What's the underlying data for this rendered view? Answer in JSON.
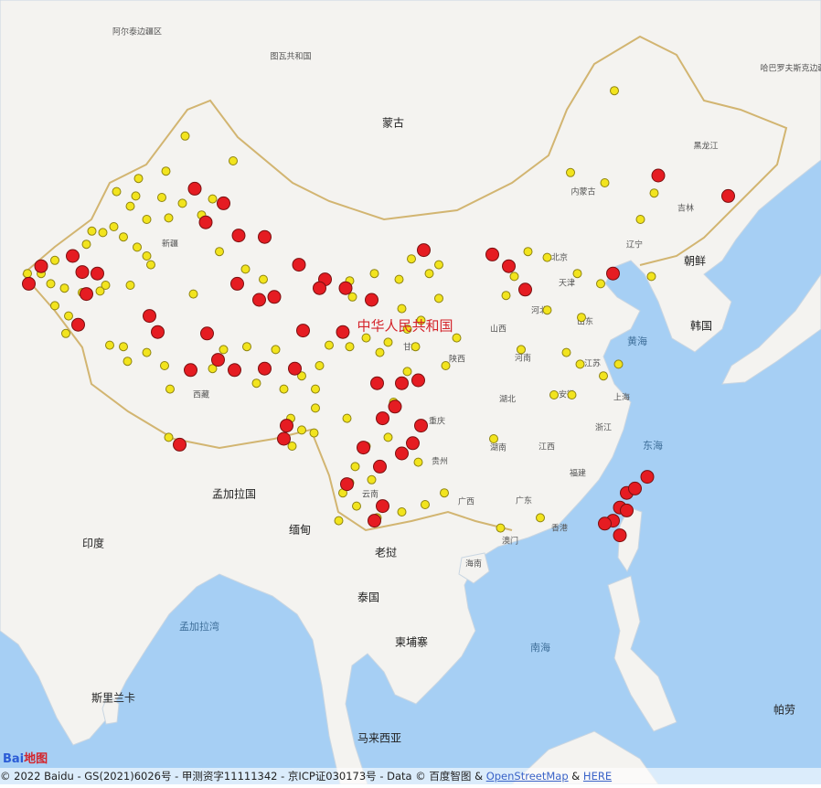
{
  "map": {
    "labels": [
      "阿尔泰边疆区",
      "图瓦共和国",
      "蒙古",
      "哈巴罗夫斯克边疆区",
      "黑龙江",
      "吉林",
      "内蒙古",
      "辽宁",
      "北京",
      "天津",
      "河北",
      "新疆",
      "甘肃",
      "山西",
      "山东",
      "河南",
      "江苏",
      "陕西",
      "西藏",
      "安徽",
      "上海",
      "湖北",
      "重庆",
      "浙江",
      "朝鲜",
      "韩国",
      "黄海",
      "东海",
      "湖南",
      "江西",
      "贵州",
      "福建",
      "云南",
      "广西",
      "广东",
      "香港",
      "澳门",
      "孟加拉国",
      "缅甸",
      "印度",
      "老挝",
      "海南",
      "泰国",
      "孟加拉湾",
      "柬埔寨",
      "南海",
      "斯里兰卡",
      "帕劳",
      "马来西亚",
      "中华人民共和国"
    ],
    "yellow_color": "#f2e41e",
    "red_color": "#e51c22",
    "yellow_points": [
      [
        88.5,
        48.7
      ],
      [
        92.0,
        47.0
      ],
      [
        87.1,
        46.3
      ],
      [
        85.1,
        45.8
      ],
      [
        83.5,
        44.9
      ],
      [
        84.9,
        44.6
      ],
      [
        86.8,
        44.5
      ],
      [
        88.3,
        44.1
      ],
      [
        84.5,
        43.9
      ],
      [
        90.5,
        44.4
      ],
      [
        89.7,
        43.3
      ],
      [
        87.3,
        43.1
      ],
      [
        85.7,
        43.0
      ],
      [
        83.3,
        42.5
      ],
      [
        82.5,
        42.1
      ],
      [
        84.0,
        41.8
      ],
      [
        85.0,
        41.1
      ],
      [
        85.7,
        40.5
      ],
      [
        86.0,
        39.9
      ],
      [
        81.7,
        42.2
      ],
      [
        81.3,
        41.3
      ],
      [
        80.3,
        40.4
      ],
      [
        79.0,
        40.2
      ],
      [
        78.0,
        39.3
      ],
      [
        77.0,
        39.3
      ],
      [
        78.7,
        38.6
      ],
      [
        79.7,
        38.3
      ],
      [
        81.0,
        38.0
      ],
      [
        82.3,
        38.1
      ],
      [
        79.0,
        37.1
      ],
      [
        80.0,
        36.4
      ],
      [
        79.8,
        35.2
      ],
      [
        82.7,
        38.5
      ],
      [
        84.5,
        38.5
      ],
      [
        89.1,
        37.9
      ],
      [
        92.9,
        39.6
      ],
      [
        94.2,
        38.9
      ],
      [
        91.0,
        40.8
      ],
      [
        93.0,
        34.3
      ],
      [
        91.3,
        34.1
      ],
      [
        90.5,
        32.8
      ],
      [
        87.0,
        33.0
      ],
      [
        85.7,
        33.9
      ],
      [
        84.0,
        34.3
      ],
      [
        83.0,
        34.4
      ],
      [
        84.3,
        33.3
      ],
      [
        87.4,
        31.4
      ],
      [
        93.7,
        31.8
      ],
      [
        95.7,
        31.4
      ],
      [
        97.0,
        32.3
      ],
      [
        98.0,
        31.4
      ],
      [
        99.0,
        34.4
      ],
      [
        100.5,
        34.3
      ],
      [
        101.7,
        34.9
      ],
      [
        103.3,
        34.6
      ],
      [
        104.7,
        35.5
      ],
      [
        105.7,
        36.1
      ],
      [
        104.1,
        38.9
      ],
      [
        105.0,
        40.3
      ],
      [
        106.3,
        39.3
      ],
      [
        107.0,
        39.9
      ],
      [
        102.3,
        39.3
      ],
      [
        100.5,
        38.8
      ],
      [
        100.7,
        37.7
      ],
      [
        104.3,
        36.9
      ],
      [
        107.0,
        37.6
      ],
      [
        102.7,
        33.9
      ],
      [
        105.3,
        34.3
      ],
      [
        108.3,
        34.9
      ],
      [
        104.7,
        32.6
      ],
      [
        103.7,
        30.5
      ],
      [
        103.3,
        28.1
      ],
      [
        100.3,
        29.4
      ],
      [
        98.0,
        30.1
      ],
      [
        96.2,
        29.4
      ],
      [
        97.0,
        28.6
      ],
      [
        97.9,
        28.4
      ],
      [
        96.3,
        27.5
      ],
      [
        101.7,
        27.5
      ],
      [
        100.9,
        26.1
      ],
      [
        102.1,
        25.2
      ],
      [
        100.5,
        25.0
      ],
      [
        100.0,
        24.3
      ],
      [
        101.0,
        23.4
      ],
      [
        99.7,
        22.4
      ],
      [
        102.5,
        22.6
      ],
      [
        104.3,
        23.0
      ],
      [
        106.0,
        23.5
      ],
      [
        107.4,
        24.3
      ],
      [
        105.5,
        26.4
      ],
      [
        111.0,
        28.0
      ],
      [
        111.5,
        21.9
      ],
      [
        114.4,
        22.6
      ],
      [
        112.5,
        39.1
      ],
      [
        113.5,
        40.8
      ],
      [
        114.9,
        40.4
      ],
      [
        117.1,
        39.3
      ],
      [
        117.4,
        36.3
      ],
      [
        116.3,
        33.9
      ],
      [
        114.9,
        36.8
      ],
      [
        113.0,
        34.1
      ],
      [
        115.4,
        31.0
      ],
      [
        116.7,
        31.0
      ],
      [
        117.3,
        33.1
      ],
      [
        119.0,
        32.3
      ],
      [
        120.1,
        33.1
      ],
      [
        118.8,
        38.6
      ],
      [
        122.5,
        39.1
      ],
      [
        121.7,
        43.0
      ],
      [
        122.7,
        44.8
      ],
      [
        116.6,
        46.2
      ],
      [
        119.1,
        45.5
      ],
      [
        119.8,
        51.8
      ],
      [
        87.3,
        28.1
      ],
      [
        111.9,
        37.8
      ],
      [
        110.9,
        40.6
      ],
      [
        107.5,
        33.0
      ],
      [
        98.3,
        33.0
      ],
      [
        95.1,
        34.1
      ]
    ],
    "red_points": [
      [
        89.2,
        45.1
      ],
      [
        91.3,
        44.1
      ],
      [
        90.0,
        42.8
      ],
      [
        92.4,
        41.9
      ],
      [
        94.3,
        41.8
      ],
      [
        82.1,
        39.3
      ],
      [
        81.0,
        39.4
      ],
      [
        80.3,
        40.5
      ],
      [
        77.1,
        38.6
      ],
      [
        78.0,
        39.8
      ],
      [
        81.3,
        37.9
      ],
      [
        80.7,
        35.8
      ],
      [
        85.9,
        36.4
      ],
      [
        86.5,
        35.3
      ],
      [
        90.1,
        35.2
      ],
      [
        88.9,
        32.7
      ],
      [
        90.9,
        33.4
      ],
      [
        92.1,
        32.7
      ],
      [
        94.3,
        32.8
      ],
      [
        96.5,
        32.8
      ],
      [
        95.0,
        37.7
      ],
      [
        93.9,
        37.5
      ],
      [
        92.3,
        38.6
      ],
      [
        96.8,
        39.9
      ],
      [
        98.7,
        38.9
      ],
      [
        98.3,
        38.3
      ],
      [
        100.2,
        38.3
      ],
      [
        102.1,
        37.5
      ],
      [
        97.1,
        35.4
      ],
      [
        100.0,
        35.3
      ],
      [
        105.9,
        40.9
      ],
      [
        110.9,
        40.6
      ],
      [
        112.1,
        39.8
      ],
      [
        113.3,
        38.2
      ],
      [
        119.7,
        39.3
      ],
      [
        123.0,
        46.0
      ],
      [
        128.1,
        44.6
      ],
      [
        102.5,
        31.8
      ],
      [
        104.3,
        31.8
      ],
      [
        105.5,
        32.0
      ],
      [
        103.8,
        30.2
      ],
      [
        102.9,
        29.4
      ],
      [
        105.7,
        28.9
      ],
      [
        105.1,
        27.7
      ],
      [
        104.3,
        27.0
      ],
      [
        102.7,
        26.1
      ],
      [
        101.5,
        27.4
      ],
      [
        100.3,
        24.9
      ],
      [
        102.9,
        23.4
      ],
      [
        102.3,
        22.4
      ],
      [
        95.9,
        28.9
      ],
      [
        95.7,
        28.0
      ],
      [
        88.1,
        27.6
      ],
      [
        122.2,
        25.4
      ],
      [
        120.7,
        24.3
      ],
      [
        120.2,
        23.3
      ],
      [
        119.7,
        22.4
      ],
      [
        119.1,
        22.2
      ],
      [
        120.2,
        21.4
      ],
      [
        120.7,
        23.1
      ],
      [
        121.3,
        24.6
      ]
    ]
  },
  "logo": {
    "brand": "Bai",
    "suffix": "地图"
  },
  "footer": {
    "copyright": "© 2022 Baidu - GS(2021)6026号 - 甲测资字11111342 - 京ICP证030173号 - Data © 百度智图 &",
    "link1": "OpenStreetMap",
    "joiner": "&",
    "link2": "HERE"
  }
}
